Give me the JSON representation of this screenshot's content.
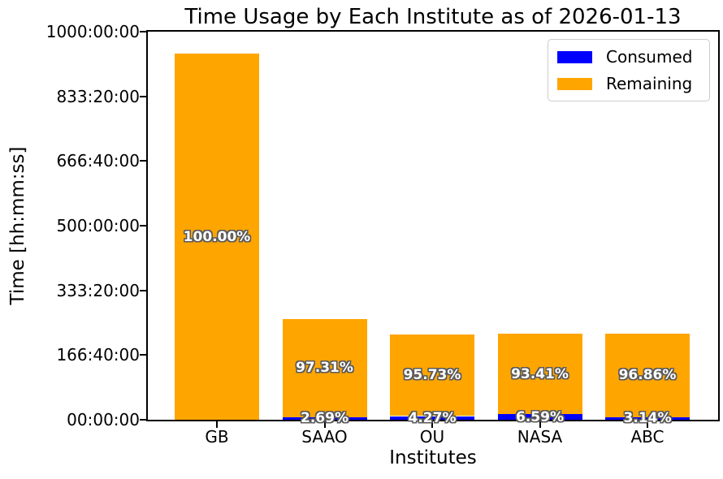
{
  "chart_data": {
    "type": "bar",
    "stacked": true,
    "title": "Time Usage by Each Institute as of 2026-01-13",
    "xlabel": "Institutes",
    "ylabel": "Time [hh:mm:ss]",
    "categories": [
      "GB",
      "SAAO",
      "OU",
      "NASA",
      "ABC"
    ],
    "series": [
      {
        "name": "Consumed",
        "color": "#0000ff",
        "values_hours": [
          0,
          7.0,
          9.4,
          14.6,
          7.0
        ],
        "pct_labels": [
          "",
          "2.69%",
          "4.27%",
          "6.59%",
          "3.14%"
        ]
      },
      {
        "name": "Remaining",
        "color": "#ffa500",
        "values_hours": [
          943.5,
          252.4,
          210.3,
          207.2,
          214.8
        ],
        "pct_labels": [
          "100.00%",
          "97.31%",
          "95.73%",
          "93.41%",
          "96.86%"
        ]
      }
    ],
    "totals_hours": [
      943.5,
      259.4,
      219.7,
      221.8,
      221.8
    ],
    "ylim_hours": [
      0,
      1000
    ],
    "ytick_labels_top_to_bottom": [
      "1000:00:00",
      "833:20:00",
      "666:40:00",
      "500:00:00",
      "333:20:00",
      "166:40:00",
      "00:00:00"
    ],
    "grid": false,
    "legend": {
      "position": "upper right",
      "entries": [
        "Consumed",
        "Remaining"
      ],
      "colors": [
        "#0000ff",
        "#ffa500"
      ]
    },
    "bar_label_style": {
      "color": "#ffffff",
      "outline_color": "#5a5a5a",
      "bold": true
    }
  }
}
